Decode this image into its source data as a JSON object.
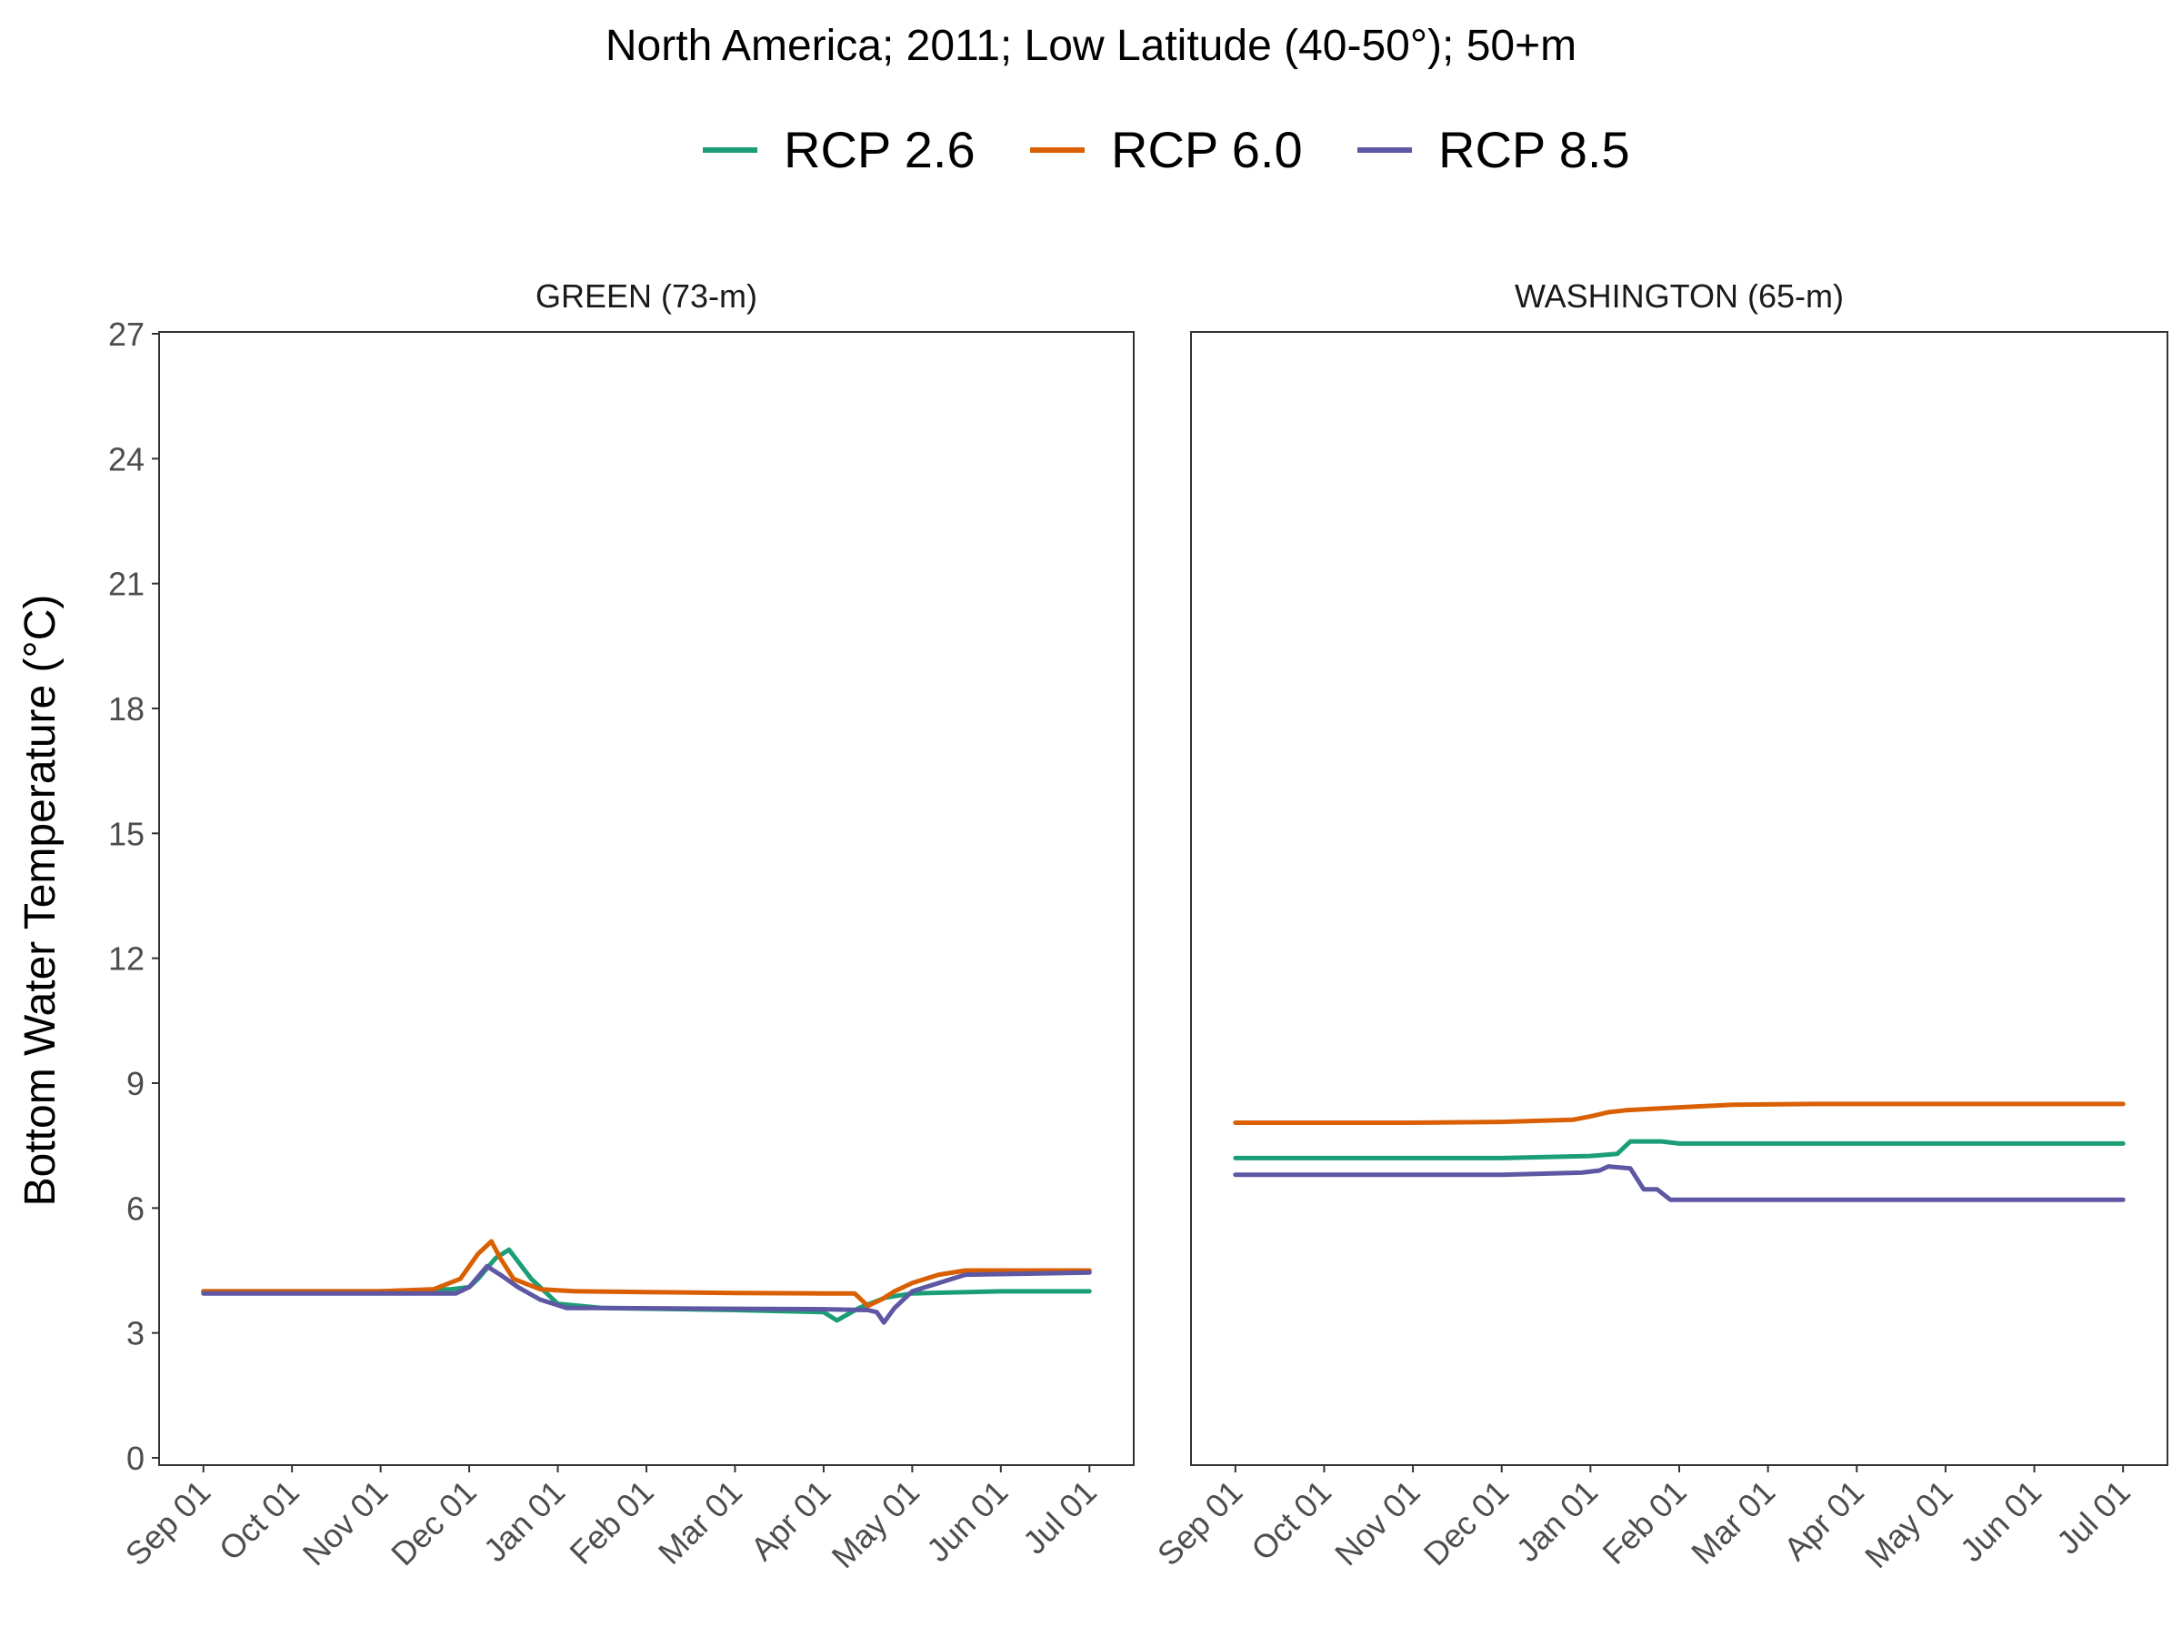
{
  "title": "North America;  2011;  Low Latitude (40-50°);  50+m",
  "legend": [
    {
      "label": "RCP 2.6",
      "color": "#1b9e77"
    },
    {
      "label": "RCP 6.0",
      "color": "#d95f02"
    },
    {
      "label": "RCP 8.5",
      "color": "#5e57a3"
    }
  ],
  "ylabel": "Bottom Water Temperature (°C)",
  "chart_data": [
    {
      "type": "line",
      "panel": "GREEN (73-m)",
      "x_tick_labels": [
        "Sep 01",
        "Oct 01",
        "Nov 01",
        "Dec 01",
        "Jan 01",
        "Feb 01",
        "Mar 01",
        "Apr 01",
        "May 01",
        "Jun 01",
        "Jul 01"
      ],
      "x_unit": "months since Sep 01",
      "xlim": [
        -0.5,
        10.5
      ],
      "ylim": [
        0,
        27
      ],
      "y_ticks": [
        0,
        3,
        6,
        9,
        12,
        15,
        18,
        21,
        24,
        27
      ],
      "series": [
        {
          "name": "RCP 2.6",
          "color": "#1b9e77",
          "x": [
            0,
            1,
            2,
            2.8,
            3,
            3.1,
            3.3,
            3.45,
            3.7,
            4.0,
            4.5,
            6,
            7.0,
            7.15,
            7.4,
            7.7,
            8.0,
            9.0,
            10.0
          ],
          "y": [
            4.0,
            4.0,
            4.0,
            4.05,
            4.1,
            4.3,
            4.8,
            5.0,
            4.3,
            3.7,
            3.6,
            3.55,
            3.5,
            3.3,
            3.6,
            3.85,
            3.95,
            4.0,
            4.0
          ]
        },
        {
          "name": "RCP 6.0",
          "color": "#d95f02",
          "x": [
            0,
            1,
            2,
            2.6,
            2.9,
            3.1,
            3.25,
            3.35,
            3.5,
            3.8,
            4.2,
            5,
            6,
            7,
            7.35,
            7.5,
            7.65,
            7.8,
            8.0,
            8.3,
            8.6,
            10.0
          ],
          "y": [
            4.0,
            4.0,
            4.0,
            4.05,
            4.3,
            4.9,
            5.2,
            4.8,
            4.3,
            4.05,
            4.0,
            3.98,
            3.96,
            3.95,
            3.95,
            3.65,
            3.8,
            4.0,
            4.2,
            4.4,
            4.5,
            4.5
          ]
        },
        {
          "name": "RCP 8.5",
          "color": "#5e57a3",
          "x": [
            0,
            1,
            2,
            2.85,
            3.0,
            3.2,
            3.35,
            3.55,
            3.8,
            4.1,
            4.5,
            6,
            7,
            7.5,
            7.6,
            7.68,
            7.8,
            8.0,
            8.3,
            8.6,
            10.0
          ],
          "y": [
            3.95,
            3.95,
            3.95,
            3.95,
            4.1,
            4.6,
            4.4,
            4.1,
            3.8,
            3.6,
            3.6,
            3.58,
            3.57,
            3.55,
            3.5,
            3.25,
            3.6,
            4.0,
            4.2,
            4.4,
            4.45
          ]
        }
      ]
    },
    {
      "type": "line",
      "panel": "WASHINGTON (65-m)",
      "x_tick_labels": [
        "Sep 01",
        "Oct 01",
        "Nov 01",
        "Dec 01",
        "Jan 01",
        "Feb 01",
        "Mar 01",
        "Apr 01",
        "May 01",
        "Jun 01",
        "Jul 01"
      ],
      "x_unit": "months since Sep 01",
      "xlim": [
        -0.5,
        10.5
      ],
      "ylim": [
        0,
        27
      ],
      "y_ticks": [
        0,
        3,
        6,
        9,
        12,
        15,
        18,
        21,
        24,
        27
      ],
      "series": [
        {
          "name": "RCP 2.6",
          "color": "#1b9e77",
          "x": [
            0,
            2,
            3,
            4.0,
            4.3,
            4.45,
            4.6,
            4.8,
            5.0,
            5.2,
            7,
            10.0
          ],
          "y": [
            7.2,
            7.2,
            7.2,
            7.25,
            7.3,
            7.6,
            7.6,
            7.6,
            7.55,
            7.55,
            7.55,
            7.55
          ]
        },
        {
          "name": "RCP 6.0",
          "color": "#d95f02",
          "x": [
            0,
            2,
            3,
            3.8,
            4.0,
            4.2,
            4.4,
            5.0,
            5.6,
            6.5,
            8,
            10.0
          ],
          "y": [
            8.05,
            8.05,
            8.07,
            8.12,
            8.2,
            8.3,
            8.35,
            8.42,
            8.48,
            8.5,
            8.5,
            8.5
          ]
        },
        {
          "name": "RCP 8.5",
          "color": "#5e57a3",
          "x": [
            0,
            2,
            3,
            3.9,
            4.1,
            4.2,
            4.45,
            4.6,
            4.75,
            4.9,
            5.1,
            6,
            8,
            10.0
          ],
          "y": [
            6.8,
            6.8,
            6.8,
            6.85,
            6.9,
            7.0,
            6.95,
            6.45,
            6.45,
            6.2,
            6.2,
            6.2,
            6.2,
            6.2
          ]
        }
      ]
    }
  ]
}
